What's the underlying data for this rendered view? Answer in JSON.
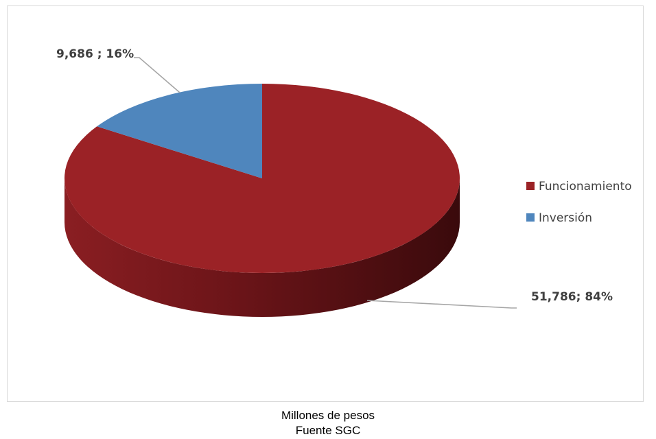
{
  "chart_data": {
    "type": "pie",
    "title": "",
    "style": "3d",
    "legend_position": "right",
    "slices": [
      {
        "name": "Funcionamiento",
        "value": 51786,
        "percent": 84,
        "label": "51,786; 84%",
        "color": "#9b2226",
        "dark_color": "#4a0f12"
      },
      {
        "name": "Inversión",
        "value": 9686,
        "percent": 16,
        "label": "9,686 ; 16%",
        "color": "#4f86bd",
        "dark_color": "#2f5a85"
      }
    ]
  },
  "captions": {
    "units": "Millones de pesos",
    "source": "Fuente SGC"
  }
}
